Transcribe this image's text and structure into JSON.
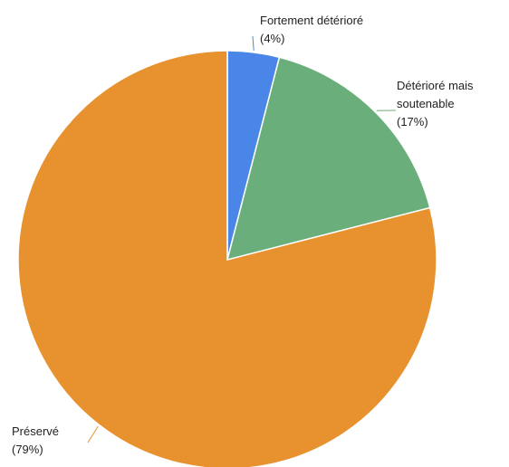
{
  "chart_data": {
    "type": "pie",
    "title": "",
    "start_angle_deg": 0,
    "direction": "clockwise",
    "slices": [
      {
        "label_lines": [
          "Fortement détérioré",
          "(4%)"
        ],
        "value": 4,
        "color": "#4a86e8"
      },
      {
        "label_lines": [
          "Détérioré mais",
          "soutenable",
          "(17%)"
        ],
        "value": 17,
        "color": "#6aaf7b"
      },
      {
        "label_lines": [
          "Préservé",
          "(79%)"
        ],
        "value": 79,
        "color": "#e8912f"
      }
    ]
  }
}
